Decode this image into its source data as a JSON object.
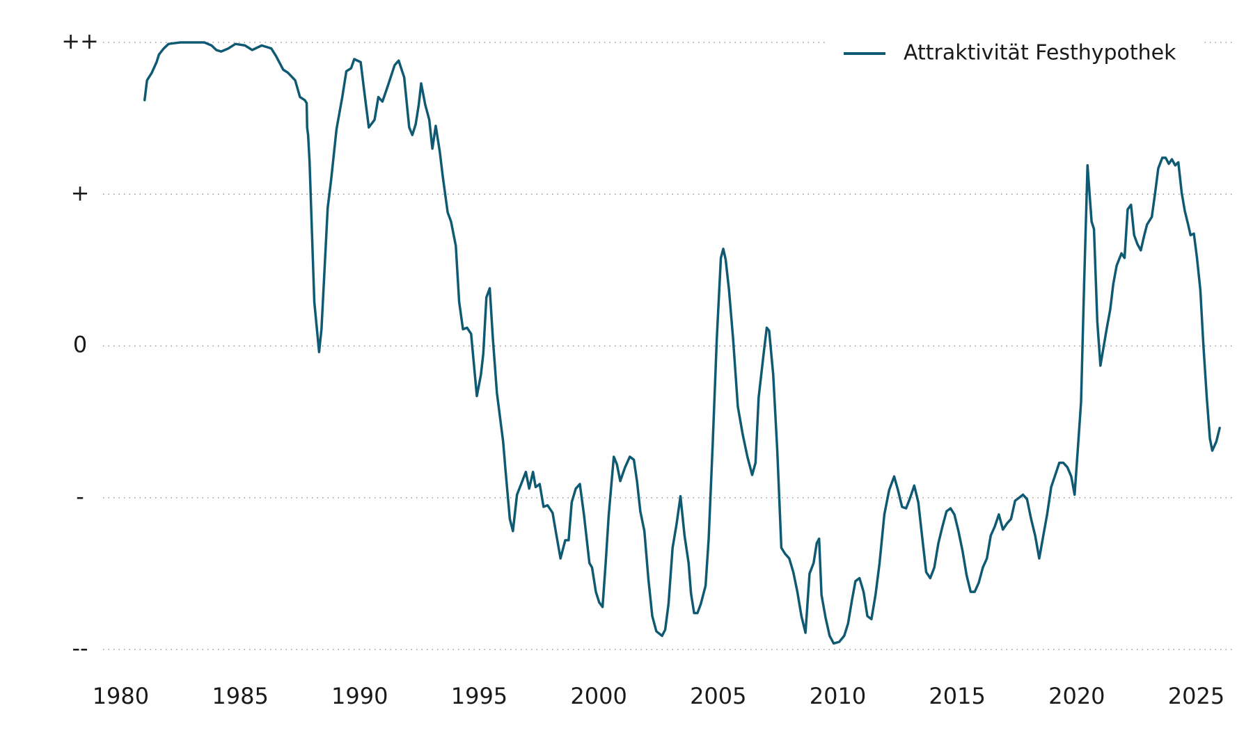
{
  "chart_data": {
    "type": "line",
    "series": [
      {
        "name": "Attraktivität Festhypothek",
        "color": "#0f5a72",
        "values": [
          1.62,
          1.75,
          1.8,
          1.87,
          1.92,
          1.96,
          1.99,
          2.0,
          2.0,
          2.0,
          1.98,
          1.95,
          1.94,
          1.96,
          1.99,
          1.98,
          1.95,
          1.98,
          1.96,
          1.91,
          1.82,
          1.8,
          1.75,
          1.64,
          1.62,
          1.6,
          1.44,
          1.39,
          1.22,
          0.29,
          -0.04,
          0.11,
          0.91,
          1.09,
          1.43,
          1.64,
          1.81,
          1.83,
          1.89,
          1.87,
          1.69,
          1.44,
          1.49,
          1.64,
          1.61,
          1.72,
          1.85,
          1.88,
          1.77,
          1.44,
          1.39,
          1.46,
          1.59,
          1.73,
          1.59,
          1.49,
          1.3,
          1.45,
          1.28,
          1.11,
          0.88,
          0.82,
          0.66,
          0.29,
          0.11,
          0.12,
          0.08,
          -0.33,
          -0.19,
          -0.05,
          0.32,
          0.38,
          0.05,
          -0.31,
          -0.63,
          -0.82,
          -1.14,
          -1.22,
          -0.98,
          -0.9,
          -0.83,
          -0.94,
          -0.83,
          -0.93,
          -0.91,
          -1.06,
          -1.05,
          -1.1,
          -1.22,
          -1.4,
          -1.28,
          -1.28,
          -1.03,
          -0.94,
          -0.91,
          -1.11,
          -1.43,
          -1.46,
          -1.62,
          -1.69,
          -1.72,
          -1.43,
          -1.11,
          -0.73,
          -0.78,
          -0.89,
          -0.8,
          -0.73,
          -0.75,
          -0.89,
          -1.09,
          -1.22,
          -1.54,
          -1.78,
          -1.88,
          -1.91,
          -1.87,
          -1.7,
          -1.33,
          -1.17,
          -0.99,
          -1.25,
          -1.43,
          -1.63,
          -1.76,
          -1.76,
          -1.7,
          -1.58,
          -1.27,
          -0.64,
          0.05,
          0.58,
          0.64,
          0.57,
          0.37,
          0.05,
          -0.4,
          -0.58,
          -0.73,
          -0.85,
          -0.77,
          -0.34,
          -0.05,
          0.12,
          0.1,
          -0.19,
          -0.69,
          -1.33,
          -1.37,
          -1.4,
          -1.49,
          -1.62,
          -1.78,
          -1.89,
          -1.5,
          -1.43,
          -1.3,
          -1.27,
          -1.64,
          -1.79,
          -1.91,
          -1.96,
          -1.95,
          -1.91,
          -1.83,
          -1.67,
          -1.55,
          -1.53,
          -1.62,
          -1.78,
          -1.8,
          -1.64,
          -1.43,
          -1.11,
          -0.95,
          -0.86,
          -0.95,
          -1.06,
          -1.07,
          -1.0,
          -0.92,
          -1.03,
          -1.27,
          -1.49,
          -1.53,
          -1.46,
          -1.3,
          -1.19,
          -1.09,
          -1.07,
          -1.11,
          -1.22,
          -1.35,
          -1.51,
          -1.62,
          -1.62,
          -1.56,
          -1.46,
          -1.4,
          -1.25,
          -1.19,
          -1.11,
          -1.21,
          -1.17,
          -1.14,
          -1.02,
          -1.0,
          -0.98,
          -1.01,
          -1.14,
          -1.25,
          -1.4,
          -1.25,
          -1.11,
          -0.93,
          -0.85,
          -0.77,
          -0.77,
          -0.8,
          -0.86,
          -0.98,
          -0.69,
          -0.37,
          0.42,
          1.19,
          0.82,
          0.77,
          0.16,
          -0.13,
          0.0,
          0.12,
          0.24,
          0.41,
          0.53,
          0.61,
          0.58,
          0.9,
          0.93,
          0.73,
          0.67,
          0.63,
          0.72,
          0.8,
          0.85,
          1.01,
          1.17,
          1.24,
          1.24,
          1.2,
          1.23,
          1.19,
          1.21,
          1.01,
          0.89,
          0.8,
          0.73,
          0.74,
          0.58,
          0.37,
          0.0,
          -0.34,
          -0.61,
          -0.69,
          -0.63,
          -0.54
        ]
      }
    ],
    "x": [
      1981.0,
      1981.1,
      1981.3,
      1981.5,
      1981.6,
      1981.8,
      1982.0,
      1982.5,
      1983.0,
      1983.5,
      1983.8,
      1984.0,
      1984.2,
      1984.5,
      1984.8,
      1985.2,
      1985.5,
      1985.9,
      1986.3,
      1986.5,
      1986.8,
      1987.0,
      1987.3,
      1987.5,
      1987.7,
      1987.78,
      1987.8,
      1987.84,
      1987.9,
      1988.1,
      1988.3,
      1988.4,
      1988.66,
      1988.8,
      1989.03,
      1989.27,
      1989.44,
      1989.64,
      1989.77,
      1990.04,
      1990.18,
      1990.38,
      1990.62,
      1990.78,
      1990.95,
      1991.19,
      1991.46,
      1991.63,
      1991.86,
      1992.07,
      1992.2,
      1992.34,
      1992.47,
      1992.57,
      1992.74,
      1992.91,
      1993.04,
      1993.18,
      1993.35,
      1993.48,
      1993.68,
      1993.82,
      1994.02,
      1994.16,
      1994.32,
      1994.49,
      1994.66,
      1994.9,
      1995.07,
      1995.17,
      1995.3,
      1995.44,
      1995.57,
      1995.74,
      1996.0,
      1996.1,
      1996.28,
      1996.41,
      1996.58,
      1996.78,
      1996.95,
      1997.09,
      1997.25,
      1997.36,
      1997.53,
      1997.69,
      1997.86,
      1998.07,
      1998.2,
      1998.4,
      1998.6,
      1998.74,
      1998.87,
      1999.04,
      1999.21,
      1999.38,
      1999.61,
      1999.72,
      1999.88,
      2000.02,
      2000.16,
      2000.29,
      2000.42,
      2000.63,
      2000.76,
      2000.9,
      2001.1,
      2001.3,
      2001.47,
      2001.6,
      2001.74,
      2001.91,
      2002.08,
      2002.24,
      2002.41,
      2002.65,
      2002.78,
      2002.92,
      2003.09,
      2003.26,
      2003.42,
      2003.59,
      2003.76,
      2003.86,
      2003.99,
      2004.13,
      2004.27,
      2004.47,
      2004.6,
      2004.77,
      2004.94,
      2005.11,
      2005.21,
      2005.31,
      2005.45,
      2005.62,
      2005.82,
      2006.02,
      2006.22,
      2006.42,
      2006.56,
      2006.69,
      2006.9,
      2007.03,
      2007.13,
      2007.3,
      2007.47,
      2007.64,
      2007.8,
      2007.97,
      2008.14,
      2008.31,
      2008.48,
      2008.65,
      2008.82,
      2008.99,
      2009.12,
      2009.22,
      2009.32,
      2009.49,
      2009.66,
      2009.83,
      2010.06,
      2010.27,
      2010.43,
      2010.6,
      2010.74,
      2010.91,
      2011.08,
      2011.24,
      2011.41,
      2011.58,
      2011.75,
      2011.95,
      2012.15,
      2012.36,
      2012.52,
      2012.69,
      2012.86,
      2013.03,
      2013.2,
      2013.37,
      2013.54,
      2013.7,
      2013.87,
      2014.04,
      2014.21,
      2014.38,
      2014.55,
      2014.72,
      2014.88,
      2015.05,
      2015.22,
      2015.39,
      2015.56,
      2015.73,
      2015.9,
      2016.07,
      2016.24,
      2016.4,
      2016.57,
      2016.74,
      2016.91,
      2017.08,
      2017.25,
      2017.42,
      2017.59,
      2017.75,
      2017.92,
      2018.09,
      2018.26,
      2018.43,
      2018.6,
      2018.76,
      2018.93,
      2019.1,
      2019.27,
      2019.44,
      2019.61,
      2019.77,
      2019.91,
      2020.04,
      2020.18,
      2020.31,
      2020.45,
      2020.62,
      2020.72,
      2020.86,
      2020.99,
      2021.13,
      2021.26,
      2021.4,
      2021.53,
      2021.67,
      2021.87,
      2022.0,
      2022.13,
      2022.27,
      2022.4,
      2022.54,
      2022.68,
      2022.81,
      2022.94,
      2023.14,
      2023.28,
      2023.41,
      2023.58,
      2023.72,
      2023.85,
      2023.98,
      2024.12,
      2024.25,
      2024.39,
      2024.52,
      2024.66,
      2024.76,
      2024.9,
      2025.03,
      2025.17,
      2025.3,
      2025.44,
      2025.57,
      2025.67,
      2025.84,
      2025.98
    ],
    "xlim": [
      1979.26,
      2026.5
    ],
    "xticks": [
      1980,
      1985,
      1990,
      1995,
      2000,
      2005,
      2010,
      2015,
      2020,
      2025
    ],
    "ylim": [
      -2,
      2
    ],
    "yticks": [
      {
        "value": -2,
        "label": "--"
      },
      {
        "value": -1,
        "label": "-"
      },
      0,
      {
        "value": 1,
        "label": "+"
      },
      {
        "value": 2,
        "label": "++"
      }
    ],
    "grid": true,
    "legend": "upper right"
  }
}
